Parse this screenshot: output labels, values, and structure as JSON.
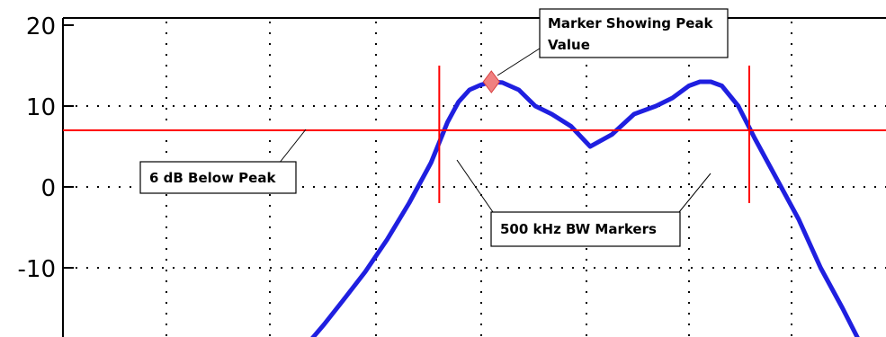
{
  "chart_data": {
    "type": "line",
    "title": "",
    "xlabel": "",
    "ylabel": "",
    "ylim": [
      -19,
      20
    ],
    "y_ticks": [
      20,
      10,
      0,
      -10
    ],
    "y_tick_labels": [
      "20",
      "10",
      "0",
      "-10"
    ],
    "grid": "dotted",
    "series": [
      {
        "color": "#1f1fe0",
        "x": [
          0,
          0.05,
          0.12,
          0.2,
          0.28,
          0.36,
          0.44,
          0.5,
          0.54,
          0.58,
          0.62,
          0.66,
          0.7,
          0.76,
          0.82,
          0.88,
          0.95,
          1.02,
          1.1,
          1.18,
          1.26,
          1.32,
          1.38,
          1.42,
          1.46,
          1.5,
          1.56,
          1.62,
          1.7,
          1.78,
          1.86,
          1.94,
          2.0
        ],
        "y": [
          -19,
          -17,
          -14,
          -10.5,
          -6.5,
          -2,
          3,
          8,
          10.5,
          12,
          12.6,
          13,
          12.9,
          12,
          10,
          9,
          7.5,
          5,
          6.5,
          9,
          10,
          11,
          12.5,
          13,
          13,
          12.5,
          10,
          6,
          1,
          -4,
          -10,
          -15,
          -19
        ]
      }
    ],
    "peak_marker": {
      "x": 0.66,
      "y": 13,
      "color": "#f08080"
    },
    "reference_line": {
      "y": 7,
      "color": "#ff0000"
    },
    "bw_markers": {
      "x": [
        0.47,
        1.6
      ],
      "color": "#ff0000"
    },
    "annotations": [
      {
        "id": "peak",
        "lines": [
          "Marker Showing Peak",
          "Value"
        ]
      },
      {
        "id": "ref",
        "lines": [
          "6 dB Below Peak"
        ]
      },
      {
        "id": "bw",
        "lines": [
          "500 kHz BW Markers"
        ]
      }
    ]
  }
}
